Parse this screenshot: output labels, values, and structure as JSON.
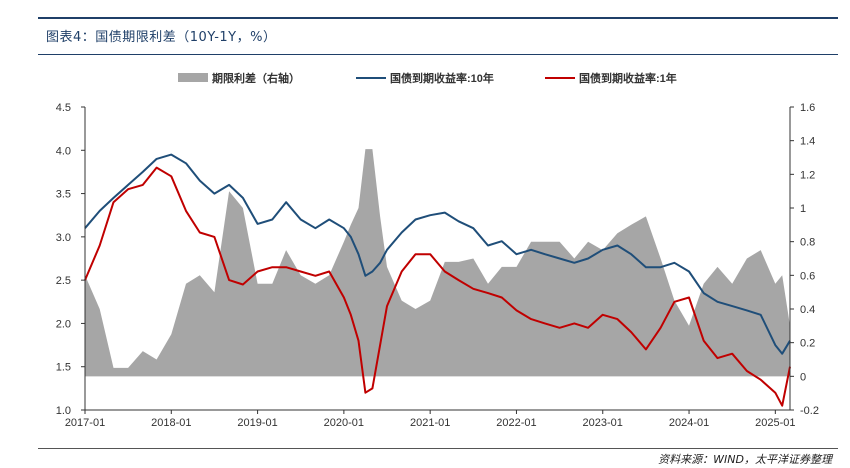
{
  "header": {
    "title": "图表4：国债期限利差（10Y-1Y，%）",
    "source": "资料来源：WIND，太平洋证券整理",
    "line_color": "#1f3f68"
  },
  "chart_data": {
    "type": "line",
    "legend": [
      {
        "name": "期限利差（右轴）",
        "type": "area",
        "color": "#a6a6a6"
      },
      {
        "name": "国债到期收益率:10年",
        "type": "line",
        "color": "#1f4e79"
      },
      {
        "name": "国债到期收益率:1年",
        "type": "line",
        "color": "#c00000"
      }
    ],
    "x_ticks": [
      "2017-01",
      "2018-01",
      "2019-01",
      "2020-01",
      "2021-01",
      "2022-01",
      "2023-01",
      "2024-01",
      "2025-01"
    ],
    "y_left": {
      "min": 1.0,
      "max": 4.5,
      "ticks": [
        "1.0",
        "1.5",
        "2.0",
        "2.5",
        "3.0",
        "3.5",
        "4.0",
        "4.5"
      ]
    },
    "y_right": {
      "min": -0.2,
      "max": 1.6,
      "ticks": [
        "-0.2",
        "0",
        "0.2",
        "0.4",
        "0.6",
        "0.8",
        "1",
        "1.2",
        "1.4",
        "1.6"
      ]
    },
    "x": [
      2017.0,
      2017.17,
      2017.33,
      2017.5,
      2017.67,
      2017.83,
      2018.0,
      2018.17,
      2018.33,
      2018.5,
      2018.67,
      2018.83,
      2019.0,
      2019.17,
      2019.33,
      2019.5,
      2019.67,
      2019.83,
      2020.0,
      2020.08,
      2020.17,
      2020.25,
      2020.33,
      2020.42,
      2020.5,
      2020.67,
      2020.83,
      2021.0,
      2021.17,
      2021.33,
      2021.5,
      2021.67,
      2021.83,
      2022.0,
      2022.17,
      2022.33,
      2022.5,
      2022.67,
      2022.83,
      2023.0,
      2023.17,
      2023.33,
      2023.5,
      2023.67,
      2023.83,
      2024.0,
      2024.17,
      2024.33,
      2024.5,
      2024.67,
      2024.83,
      2025.0,
      2025.08,
      2025.17
    ],
    "series": [
      {
        "name": "国债到期收益率:10年",
        "values": [
          3.1,
          3.3,
          3.45,
          3.6,
          3.75,
          3.9,
          3.95,
          3.85,
          3.65,
          3.5,
          3.6,
          3.45,
          3.15,
          3.2,
          3.4,
          3.2,
          3.1,
          3.2,
          3.1,
          3.0,
          2.8,
          2.55,
          2.6,
          2.7,
          2.85,
          3.05,
          3.2,
          3.25,
          3.28,
          3.18,
          3.1,
          2.9,
          2.95,
          2.8,
          2.85,
          2.8,
          2.75,
          2.7,
          2.75,
          2.85,
          2.9,
          2.8,
          2.65,
          2.65,
          2.7,
          2.6,
          2.35,
          2.25,
          2.2,
          2.15,
          2.1,
          1.75,
          1.65,
          1.8
        ]
      },
      {
        "name": "国债到期收益率:1年",
        "values": [
          2.5,
          2.9,
          3.4,
          3.55,
          3.6,
          3.8,
          3.7,
          3.3,
          3.05,
          3.0,
          2.5,
          2.45,
          2.6,
          2.65,
          2.65,
          2.6,
          2.55,
          2.6,
          2.3,
          2.1,
          1.8,
          1.2,
          1.25,
          1.75,
          2.2,
          2.6,
          2.8,
          2.8,
          2.6,
          2.5,
          2.4,
          2.35,
          2.3,
          2.15,
          2.05,
          2.0,
          1.95,
          2.0,
          1.95,
          2.1,
          2.05,
          1.9,
          1.7,
          1.95,
          2.25,
          2.3,
          1.8,
          1.6,
          1.65,
          1.45,
          1.35,
          1.2,
          1.05,
          1.5
        ]
      },
      {
        "name": "期限利差（右轴）",
        "values": [
          0.6,
          0.4,
          0.05,
          0.05,
          0.15,
          0.1,
          0.25,
          0.55,
          0.6,
          0.5,
          1.1,
          1.0,
          0.55,
          0.55,
          0.75,
          0.6,
          0.55,
          0.6,
          0.8,
          0.9,
          1.0,
          1.35,
          1.35,
          0.95,
          0.65,
          0.45,
          0.4,
          0.45,
          0.68,
          0.68,
          0.7,
          0.55,
          0.65,
          0.65,
          0.8,
          0.8,
          0.8,
          0.7,
          0.8,
          0.75,
          0.85,
          0.9,
          0.95,
          0.7,
          0.45,
          0.3,
          0.55,
          0.65,
          0.55,
          0.7,
          0.75,
          0.55,
          0.6,
          0.3
        ]
      }
    ]
  }
}
